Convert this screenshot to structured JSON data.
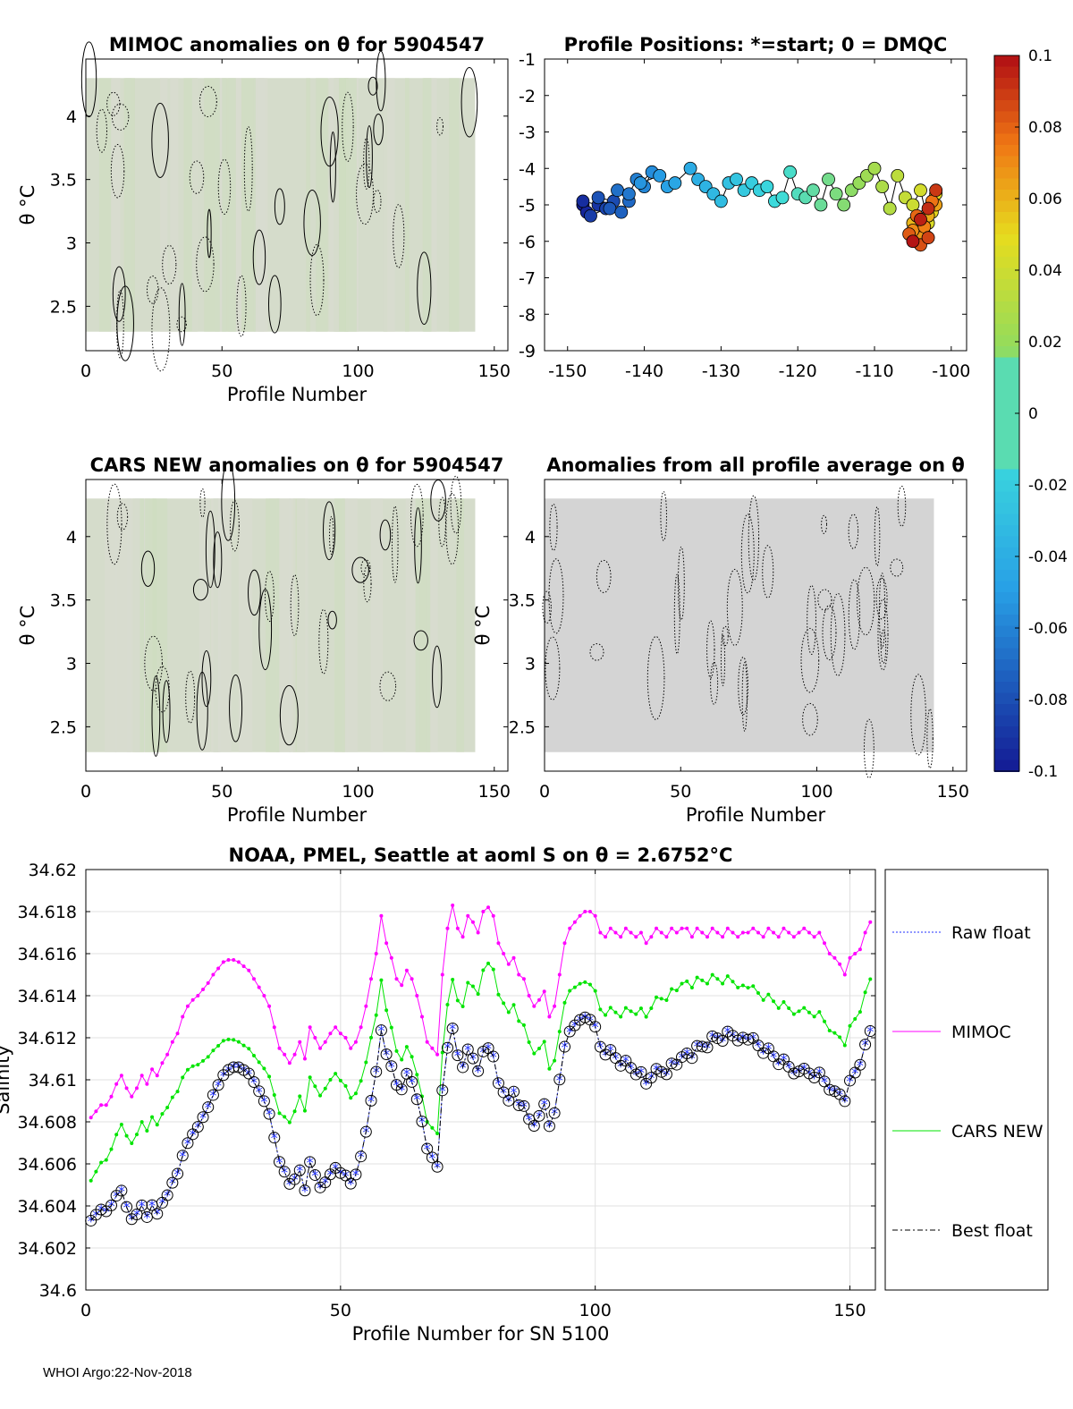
{
  "footer": "WHOI Argo:22-Nov-2018",
  "colors": {
    "field": "#d5dccb",
    "grey": "#d4d4d4",
    "raw": "#2030ff",
    "mimoc": "#ff00ff",
    "cars": "#00e400",
    "best": "#000000"
  },
  "chart_data": [
    {
      "id": "p1",
      "type": "heatmap",
      "title": "MIMOC anomalies on θ  for 5904547",
      "xlabel": "Profile Number",
      "ylabel": "θ °C",
      "xlim": [
        0,
        155
      ],
      "ylim": [
        2.15,
        4.45
      ],
      "xticks": [
        0,
        50,
        100,
        150
      ],
      "yticks": [
        2.5,
        3,
        3.5,
        4
      ],
      "ytick_labels": [
        "2.5",
        "3",
        "3.5",
        "4"
      ]
    },
    {
      "id": "p2",
      "type": "scatter",
      "title": "Profile Positions: *=start; 0 = DMQC",
      "xlim": [
        -153,
        -98
      ],
      "ylim": [
        -9,
        -1
      ],
      "xticks": [
        -150,
        -140,
        -130,
        -120,
        -110,
        -100
      ],
      "yticks": [
        -1,
        -2,
        -3,
        -4,
        -5,
        -6,
        -7,
        -8,
        -9
      ],
      "start": [
        -140,
        -5
      ],
      "track": [
        [
          -148,
          -5.0
        ],
        [
          -147.5,
          -5.2
        ],
        [
          -148,
          -4.9
        ],
        [
          -146,
          -5.0
        ],
        [
          -147,
          -5.3
        ],
        [
          -145,
          -5.1
        ],
        [
          -144,
          -4.9
        ],
        [
          -146,
          -4.8
        ],
        [
          -144.5,
          -5.1
        ],
        [
          -143,
          -5.2
        ],
        [
          -142,
          -4.9
        ],
        [
          -143.5,
          -4.6
        ],
        [
          -142,
          -4.7
        ],
        [
          -141,
          -4.3
        ],
        [
          -140,
          -4.5
        ],
        [
          -139,
          -4.1
        ],
        [
          -140.5,
          -4.4
        ],
        [
          -138,
          -4.2
        ],
        [
          -137,
          -4.5
        ],
        [
          -136,
          -4.4
        ],
        [
          -134,
          -4.0
        ],
        [
          -133,
          -4.3
        ],
        [
          -132,
          -4.5
        ],
        [
          -131,
          -4.7
        ],
        [
          -130,
          -4.9
        ],
        [
          -129,
          -4.4
        ],
        [
          -128,
          -4.3
        ],
        [
          -127,
          -4.6
        ],
        [
          -126,
          -4.4
        ],
        [
          -125,
          -4.6
        ],
        [
          -124,
          -4.5
        ],
        [
          -123,
          -4.9
        ],
        [
          -122,
          -4.8
        ],
        [
          -121,
          -4.1
        ],
        [
          -120,
          -4.7
        ],
        [
          -119,
          -4.8
        ],
        [
          -118,
          -4.6
        ],
        [
          -117,
          -5.0
        ],
        [
          -116,
          -4.3
        ],
        [
          -115,
          -4.7
        ],
        [
          -114,
          -5.0
        ],
        [
          -113,
          -4.6
        ],
        [
          -112,
          -4.4
        ],
        [
          -111,
          -4.2
        ],
        [
          -110,
          -4.0
        ],
        [
          -109,
          -4.5
        ],
        [
          -108,
          -5.1
        ],
        [
          -107,
          -4.2
        ],
        [
          -106,
          -4.8
        ],
        [
          -105,
          -5.0
        ],
        [
          -104,
          -4.6
        ],
        [
          -103,
          -5.5
        ],
        [
          -102,
          -4.7
        ],
        [
          -102.5,
          -5.2
        ],
        [
          -103.5,
          -5.8
        ],
        [
          -104.5,
          -6.0
        ],
        [
          -105,
          -5.5
        ],
        [
          -103,
          -5.3
        ],
        [
          -102,
          -5.0
        ],
        [
          -104,
          -5.9
        ],
        [
          -105,
          -5.7
        ],
        [
          -103.5,
          -5.6
        ],
        [
          -102.5,
          -4.9
        ],
        [
          -104.5,
          -5.3
        ],
        [
          -105.5,
          -5.8
        ],
        [
          -104,
          -6.1
        ],
        [
          -103,
          -5.9
        ],
        [
          -102,
          -4.6
        ],
        [
          -103,
          -5.1
        ],
        [
          -104,
          -5.4
        ],
        [
          -105,
          -6.0
        ]
      ],
      "colorbar": {
        "ticks": [
          "0.1",
          "0.08",
          "0.06",
          "0.04",
          "0.02",
          "0",
          "-0.02",
          "-0.04",
          "-0.06",
          "-0.08",
          "-0.1"
        ],
        "range": [
          -0.1,
          0.1
        ]
      }
    },
    {
      "id": "p3",
      "type": "heatmap",
      "title": "CARS NEW anomalies on θ for 5904547",
      "xlabel": "Profile Number",
      "ylabel": "θ °C",
      "xlim": [
        0,
        155
      ],
      "ylim": [
        2.15,
        4.45
      ],
      "xticks": [
        0,
        50,
        100,
        150
      ],
      "yticks": [
        2.5,
        3,
        3.5,
        4
      ],
      "ytick_labels": [
        "2.5",
        "3",
        "3.5",
        "4"
      ]
    },
    {
      "id": "p4",
      "type": "heatmap",
      "title": "Anomalies from all profile average on θ",
      "xlabel": "Profile Number",
      "ylabel": "θ °C",
      "xlim": [
        0,
        155
      ],
      "ylim": [
        2.15,
        4.45
      ],
      "xticks": [
        0,
        50,
        100,
        150
      ],
      "yticks": [
        2.5,
        3,
        3.5,
        4
      ],
      "ytick_labels": [
        "2.5",
        "3",
        "3.5",
        "4"
      ]
    },
    {
      "id": "p5",
      "type": "line",
      "title": "NOAA, PMEL, Seattle at aoml S on θ = 2.6752°C",
      "xlabel": "Profile Number for SN 5100",
      "ylabel": "Salinity",
      "xlim": [
        0,
        155
      ],
      "ylim": [
        34.6,
        34.62
      ],
      "xticks": [
        0,
        50,
        100,
        150
      ],
      "yticks": [
        34.6,
        34.602,
        34.604,
        34.606,
        34.608,
        34.61,
        34.612,
        34.614,
        34.616,
        34.618,
        34.62
      ],
      "ytick_labels": [
        "34.6",
        "34.602",
        "34.604",
        "34.606",
        "34.608",
        "34.61",
        "34.612",
        "34.614",
        "34.616",
        "34.618",
        "34.62"
      ],
      "legend": [
        "Raw float",
        "MIMOC",
        "CARS NEW",
        "Best float"
      ],
      "x": [
        1,
        2,
        3,
        4,
        5,
        6,
        7,
        8,
        9,
        10,
        11,
        12,
        13,
        14,
        15,
        16,
        17,
        18,
        19,
        20,
        21,
        22,
        23,
        24,
        25,
        26,
        27,
        28,
        29,
        30,
        31,
        32,
        33,
        34,
        35,
        36,
        37,
        38,
        39,
        40,
        41,
        42,
        43,
        44,
        45,
        46,
        47,
        48,
        49,
        50,
        51,
        52,
        53,
        54,
        55,
        56,
        57,
        58,
        59,
        60,
        61,
        62,
        63,
        64,
        65,
        66,
        67,
        68,
        69,
        70,
        71,
        72,
        73,
        74,
        75,
        76,
        77,
        78,
        79,
        80,
        81,
        82,
        83,
        84,
        85,
        86,
        87,
        88,
        89,
        90,
        91,
        92,
        93,
        94,
        95,
        96,
        97,
        98,
        99,
        100,
        101,
        102,
        103,
        104,
        105,
        106,
        107,
        108,
        109,
        110,
        111,
        112,
        113,
        114,
        115,
        116,
        117,
        118,
        119,
        120,
        121,
        122,
        123,
        124,
        125,
        126,
        127,
        128,
        129,
        130,
        131,
        132,
        133,
        134,
        135,
        136,
        137,
        138,
        139,
        140,
        141,
        142,
        143,
        144,
        145,
        146,
        147,
        148,
        149,
        150,
        151,
        152,
        153,
        154
      ],
      "series": [
        {
          "name": "MIMOC",
          "values": [
            34.6082,
            34.6085,
            34.6088,
            34.6088,
            34.6092,
            34.6098,
            34.6102,
            34.6096,
            34.6092,
            34.6096,
            34.6102,
            34.6098,
            34.6105,
            34.6102,
            34.6108,
            34.6112,
            34.6118,
            34.6122,
            34.613,
            34.6135,
            34.6138,
            34.614,
            34.6143,
            34.6146,
            34.615,
            34.6153,
            34.6156,
            34.6157,
            34.6157,
            34.6156,
            34.6154,
            34.6152,
            34.6148,
            34.6144,
            34.614,
            34.6135,
            34.6125,
            34.6115,
            34.6112,
            34.6108,
            34.6112,
            34.6118,
            34.611,
            34.6125,
            34.612,
            34.6115,
            34.6118,
            34.6122,
            34.6125,
            34.6122,
            34.612,
            34.6115,
            34.6118,
            34.6125,
            34.6135,
            34.6148,
            34.616,
            34.6178,
            34.6165,
            34.6158,
            34.6148,
            34.6145,
            34.6152,
            34.6148,
            34.614,
            34.613,
            34.6118,
            34.6115,
            34.6112,
            34.615,
            34.6172,
            34.6183,
            34.6172,
            34.6168,
            34.6178,
            34.6175,
            34.617,
            34.618,
            34.6182,
            34.6178,
            34.6165,
            34.616,
            34.6155,
            34.6158,
            34.615,
            34.6148,
            34.614,
            34.6135,
            34.6138,
            34.6142,
            34.613,
            34.6135,
            34.615,
            34.6165,
            34.6172,
            34.6175,
            34.6178,
            34.618,
            34.618,
            34.6178,
            34.617,
            34.6168,
            34.6172,
            34.617,
            34.6168,
            34.6172,
            34.617,
            34.6168,
            34.617,
            34.6165,
            34.6168,
            34.6172,
            34.617,
            34.6168,
            34.6172,
            34.617,
            34.6172,
            34.6172,
            34.6168,
            34.6172,
            34.617,
            34.6168,
            34.6172,
            34.617,
            34.6168,
            34.6172,
            34.617,
            34.6168,
            34.617,
            34.617,
            34.6172,
            34.617,
            34.6168,
            34.6172,
            34.617,
            34.6168,
            34.6172,
            34.617,
            34.6168,
            34.617,
            34.6172,
            34.617,
            34.6168,
            34.617,
            34.6165,
            34.616,
            34.6158,
            34.6155,
            34.615,
            34.6158,
            34.616,
            34.6162,
            34.617,
            34.6175
          ]
        }
      ]
    }
  ]
}
